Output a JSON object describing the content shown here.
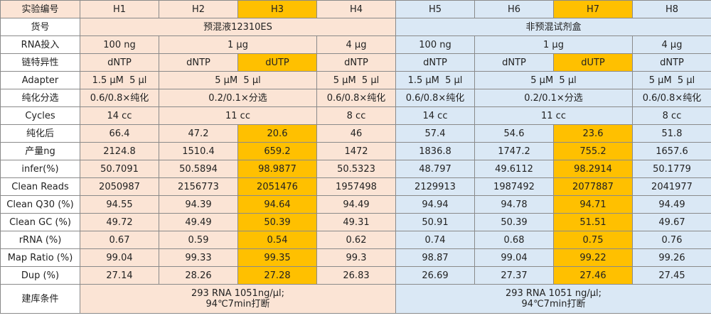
{
  "colors": {
    "left_group_fill": "#fbe4d5",
    "right_group_fill": "#dae8f5",
    "highlight_fill": "#ffc000",
    "border": "#8a8a8a"
  },
  "table": {
    "header": {
      "label": "实验编号",
      "samples": [
        "H1",
        "H2",
        "H3",
        "H4",
        "H5",
        "H6",
        "H7",
        "H8"
      ]
    },
    "product": {
      "label": "货号",
      "left": "预混液12310ES",
      "right": "非预混试剂盒"
    },
    "rna_input": {
      "label": "RNA投入",
      "h1": "100 ng",
      "h2_h3": "1 μg",
      "h4": "4 μg",
      "h5": "100 ng",
      "h6_h7": "1 μg",
      "h8": "4 μg"
    },
    "strand": {
      "label": "链特异性",
      "values": [
        "dNTP",
        "dNTP",
        "dUTP",
        "dNTP",
        "dNTP",
        "dNTP",
        "dUTP",
        "dNTP"
      ]
    },
    "adapter": {
      "label": "Adapter",
      "h1": "1.5 μM  5 μl",
      "h2_h3": "5 μM  5 μl",
      "h4": "5 μM  5 μl",
      "h5": "1.5 μM  5 μl",
      "h6_h7": "5 μM  5 μl",
      "h8": "5 μM  5 μl"
    },
    "purification": {
      "label": "纯化分选",
      "h1": "0.6/0.8×纯化",
      "h2_h3": "0.2/0.1×分选",
      "h4": "0.6/0.8×纯化",
      "h5": "0.6/0.8×纯化",
      "h6_h7": "0.2/0.1×分选",
      "h8": "0.6/0.8×纯化"
    },
    "cycles": {
      "label": "Cycles",
      "h1": "14 cc",
      "h2_h3": "11 cc",
      "h4": "8 cc",
      "h5": "14 cc",
      "h6_h7": "11 cc",
      "h8": "8 cc"
    },
    "rows": [
      {
        "label": "纯化后",
        "values": [
          "66.4",
          "47.2",
          "20.6",
          "46",
          "57.4",
          "54.6",
          "23.6",
          "51.8"
        ]
      },
      {
        "label": "产量ng",
        "values": [
          "2124.8",
          "1510.4",
          "659.2",
          "1472",
          "1836.8",
          "1747.2",
          "755.2",
          "1657.6"
        ]
      },
      {
        "label": "infer(%)",
        "values": [
          "50.7091",
          "50.5894",
          "98.9877",
          "50.5323",
          "48.797",
          "49.6112",
          "98.2914",
          "50.1779"
        ]
      },
      {
        "label": "Clean Reads",
        "values": [
          "2050987",
          "2156773",
          "2051476",
          "1957498",
          "2129913",
          "1987492",
          "2077887",
          "2041977"
        ]
      },
      {
        "label": "Clean Q30 (%)",
        "values": [
          "94.55",
          "94.39",
          "94.64",
          "94.49",
          "94.94",
          "94.78",
          "94.71",
          "94.49"
        ]
      },
      {
        "label": "Clean GC (%)",
        "values": [
          "49.72",
          "49.49",
          "50.39",
          "49.31",
          "50.91",
          "50.39",
          "51.51",
          "49.67"
        ]
      },
      {
        "label": "rRNA (%)",
        "values": [
          "0.67",
          "0.59",
          "0.54",
          "0.62",
          "0.74",
          "0.68",
          "0.75",
          "0.76"
        ]
      },
      {
        "label": "Map Ratio (%)",
        "values": [
          "99.04",
          "99.33",
          "99.35",
          "99.3",
          "98.87",
          "99.04",
          "99.22",
          "99.26"
        ]
      },
      {
        "label": "Dup (%)",
        "values": [
          "27.14",
          "28.26",
          "27.28",
          "26.83",
          "26.69",
          "27.37",
          "27.46",
          "27.45"
        ]
      }
    ],
    "library": {
      "label": "建库条件",
      "left_line1": "293 RNA 1051ng/μl;",
      "left_line2": "94℃7min打断",
      "right_line1": "293 RNA 1051 ng/μl;",
      "right_line2": "94℃7min打断"
    }
  }
}
